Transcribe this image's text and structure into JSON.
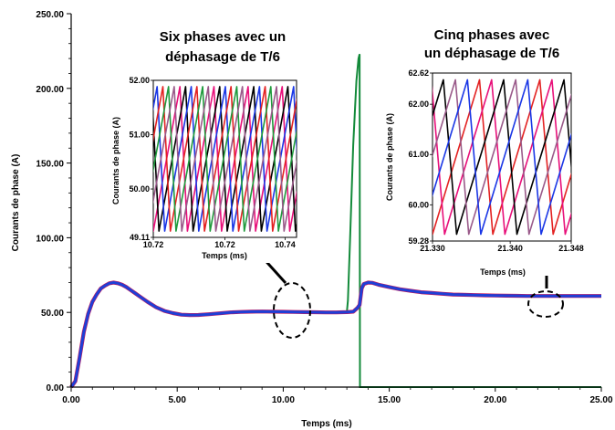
{
  "chart_data": [
    {
      "type": "line",
      "xlabel": "Temps (ms)",
      "ylabel": "Courants de phase (A)",
      "xlim": [
        0,
        25
      ],
      "ylim": [
        0,
        250
      ],
      "x_tick_labels": [
        "0.00",
        "5.00",
        "10.00",
        "15.00",
        "20.00",
        "25.00"
      ],
      "y_tick_labels": [
        "0.00",
        "50.00",
        "100.00",
        "150.00",
        "200.00",
        "250.00"
      ],
      "series": [
        {
          "color": "#1f3fd6",
          "x": [
            0.0,
            0.2,
            0.4,
            0.6,
            0.8,
            1.0,
            1.2,
            1.4,
            1.6,
            1.8,
            2.0,
            2.2,
            2.4,
            2.6,
            2.8,
            3.0,
            3.3,
            3.6,
            4.0,
            4.4,
            4.8,
            5.2,
            5.6,
            6.0,
            6.5,
            7.0,
            7.5,
            8.0,
            8.5,
            9.0,
            9.5,
            10.0,
            10.5,
            11.0,
            11.5,
            12.0,
            12.5,
            13.0,
            13.3,
            13.5,
            13.6,
            13.7,
            13.8,
            14.0,
            14.2,
            14.5,
            15.0,
            15.5,
            16.0,
            16.5,
            17.0,
            17.5,
            18.0,
            18.5,
            19.0,
            19.5,
            20.0,
            20.5,
            21.0,
            21.5,
            22.0,
            22.5,
            23.0,
            23.5,
            24.0,
            24.5,
            25.0
          ],
          "y": [
            0,
            4,
            20,
            37,
            49,
            57,
            62,
            66,
            68,
            69.5,
            70,
            69.5,
            68.5,
            67,
            65,
            63,
            60,
            57,
            53.5,
            51,
            49.5,
            48.5,
            48.2,
            48.3,
            48.8,
            49.4,
            50,
            50.3,
            50.5,
            50.6,
            50.5,
            50.4,
            50.3,
            50.2,
            50.1,
            50,
            50,
            50.2,
            50.5,
            53,
            55,
            66,
            69,
            70,
            69.8,
            68.5,
            67,
            65.5,
            64.5,
            63.5,
            63,
            62.5,
            62,
            61.8,
            61.6,
            61.4,
            61.3,
            61.2,
            61.1,
            61,
            61,
            61,
            61,
            61,
            61,
            61,
            61
          ]
        },
        {
          "color": "#138a3a",
          "x": [
            13.0,
            13.05,
            13.15,
            13.3,
            13.45,
            13.55,
            13.6,
            13.62,
            14.0,
            25.0
          ],
          "y": [
            50,
            58,
            98,
            162,
            205,
            220,
            223,
            0,
            0,
            0
          ]
        }
      ],
      "annotations": [
        {
          "lines": [
            "Six phases avec un",
            "déphasage de T/6"
          ]
        },
        {
          "lines": [
            "Cinq phases avec",
            "un déphasage de T/6"
          ]
        }
      ]
    },
    {
      "type": "line",
      "xlabel": "Temps (ms)",
      "ylabel": "Courants de phase (A)",
      "xlim": [
        10.72,
        10.745
      ],
      "ylim": [
        49.11,
        52.0
      ],
      "x_tick_labels": [
        "10.72",
        "10.72",
        "10.74"
      ],
      "y_tick_labels": [
        "52.00",
        "51.00",
        "50.00",
        "49.11"
      ],
      "phases": 6,
      "waveform": "sawtooth",
      "colors": [
        "#e8107a",
        "#000000",
        "#1a37e6",
        "#e32222",
        "#1f9a3c",
        "#9a5a8a"
      ]
    },
    {
      "type": "line",
      "xlabel": "Temps (ms)",
      "ylabel": "Courants de phase (A)",
      "xlim": [
        21.33,
        21.348
      ],
      "ylim": [
        59.28,
        62.62
      ],
      "x_tick_labels": [
        "21.330",
        "21.340",
        "21.348"
      ],
      "y_tick_labels": [
        "62.62",
        "62.00",
        "61.00",
        "60.00",
        "59.28"
      ],
      "phases": 5,
      "waveform": "sawtooth",
      "colors": [
        "#e32222",
        "#e8107a",
        "#000000",
        "#9a5a8a",
        "#1a37e6"
      ]
    }
  ]
}
